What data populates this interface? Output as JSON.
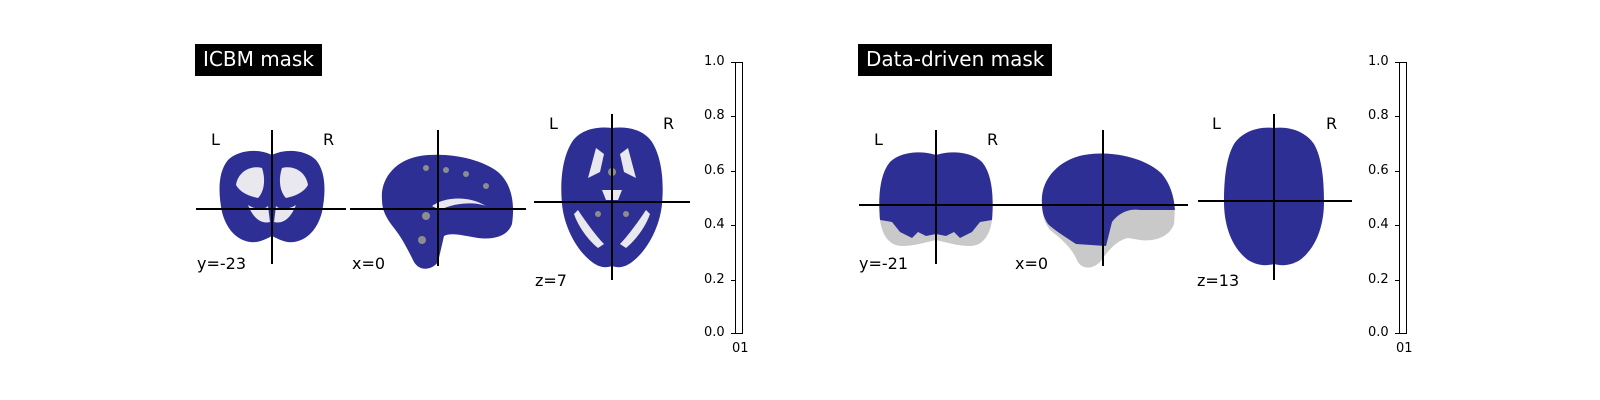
{
  "panels": [
    {
      "title": "ICBM mask",
      "views": [
        {
          "coord": "y=-23",
          "left": "L",
          "right": "R"
        },
        {
          "coord": "x=0"
        },
        {
          "coord": "z=7",
          "left": "L",
          "right": "R"
        }
      ],
      "colorbar": {
        "ticks": [
          "1.0",
          "0.8",
          "0.6",
          "0.4",
          "0.2",
          "0.0"
        ],
        "bottom_label": "01"
      }
    },
    {
      "title": "Data-driven mask",
      "views": [
        {
          "coord": "y=-21",
          "left": "L",
          "right": "R"
        },
        {
          "coord": "x=0"
        },
        {
          "coord": "z=13",
          "left": "L",
          "right": "R"
        }
      ],
      "colorbar": {
        "ticks": [
          "1.0",
          "0.8",
          "0.6",
          "0.4",
          "0.2",
          "0.0"
        ],
        "bottom_label": "01"
      }
    }
  ],
  "colors": {
    "overlay": "#2e2f94",
    "background_brain": "#c9c9c9",
    "white_matter": "#e8e8ee"
  }
}
